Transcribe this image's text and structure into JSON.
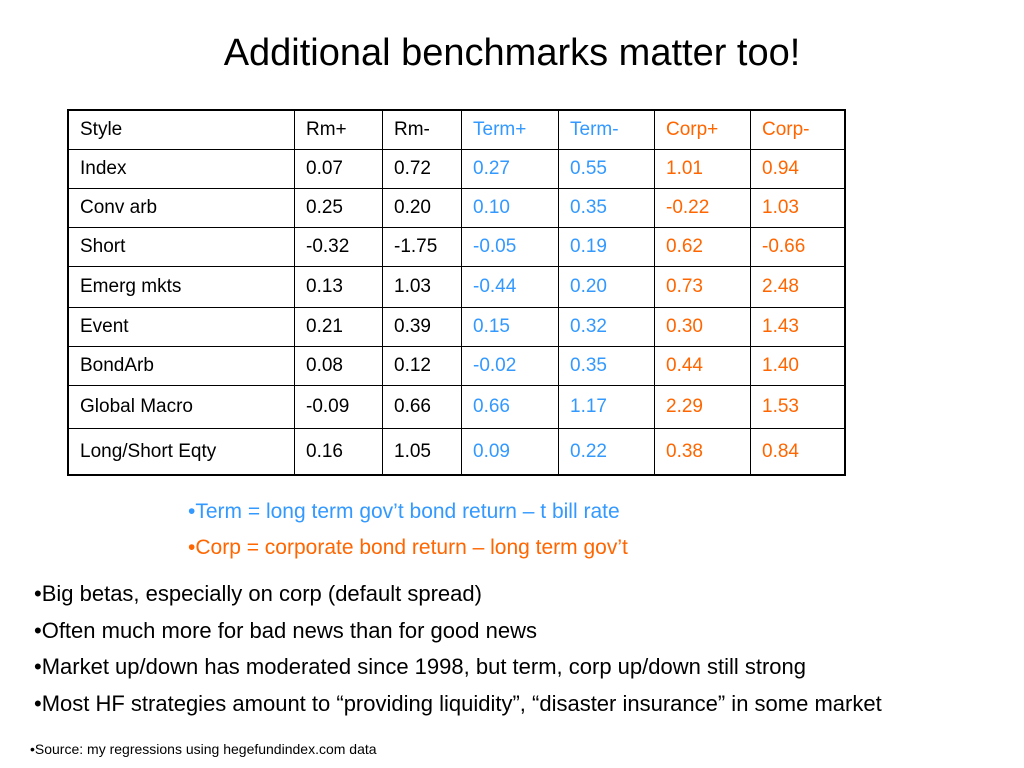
{
  "slide": {
    "title": "Additional benchmarks matter too!"
  },
  "table": {
    "headers": [
      "Style",
      "Rm+",
      "Rm-",
      "Term+",
      "Term-",
      "Corp+",
      "Corp-"
    ],
    "rows": [
      [
        "Index",
        "0.07",
        "0.72",
        "0.27",
        "0.55",
        "1.01",
        "0.94"
      ],
      [
        "Conv arb",
        "0.25",
        "0.20",
        "0.10",
        "0.35",
        "-0.22",
        "1.03"
      ],
      [
        "Short",
        "-0.32",
        "-1.75",
        "-0.05",
        "0.19",
        "0.62",
        "-0.66"
      ],
      [
        "Emerg mkts",
        "0.13",
        "1.03",
        "-0.44",
        "0.20",
        "0.73",
        "2.48"
      ],
      [
        "Event",
        "0.21",
        "0.39",
        "0.15",
        "0.32",
        "0.30",
        "1.43"
      ],
      [
        "BondArb",
        "0.08",
        "0.12",
        "-0.02",
        "0.35",
        "0.44",
        "1.40"
      ],
      [
        "Global Macro",
        "-0.09",
        "0.66",
        "0.66",
        "1.17",
        "2.29",
        "1.53"
      ],
      [
        "Long/Short Eqty",
        "0.16",
        "1.05",
        "0.09",
        "0.22",
        "0.38",
        "0.84"
      ]
    ]
  },
  "colors": {
    "term": "#3399ff",
    "corp": "#ff6600"
  },
  "notes": {
    "term": "•Term = long term gov’t bond return – t bill rate",
    "corp": "•Corp = corporate bond return – long term gov’t"
  },
  "bullets": [
    "•Big betas, especially on corp (default spread)",
    "•Often much more for bad news than for good news",
    "•Market up/down has moderated since 1998, but term, corp up/down still strong",
    "•Most HF strategies amount to “providing liquidity”, “disaster insurance” in some market"
  ],
  "source": "•Source: my regressions using hegefundindex.com data"
}
